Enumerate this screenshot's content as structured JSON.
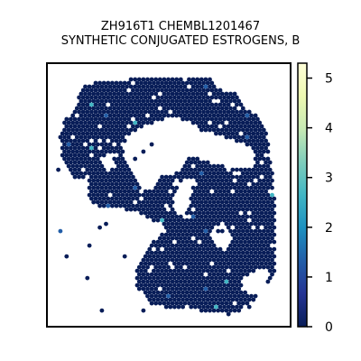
{
  "chart_data": {
    "type": "scatter",
    "title": "ZH916T1 CHEMBL1201467",
    "subtitle": "SYNTHETIC CONJUGATED ESTROGENS, B",
    "colorbar": {
      "min": 0,
      "max": 5.3,
      "ticks": [
        "0",
        "1",
        "2",
        "3",
        "4",
        "5"
      ],
      "colormap": "YlGnBu_r"
    },
    "point_values_summary": {
      "typical": 0.3,
      "few_elevated": [
        1.0,
        1.5,
        2.5
      ]
    }
  },
  "colors": {
    "low": "#081d58",
    "mid": "#1d91c0",
    "high": "#ffffd9",
    "frame": "#000000"
  }
}
